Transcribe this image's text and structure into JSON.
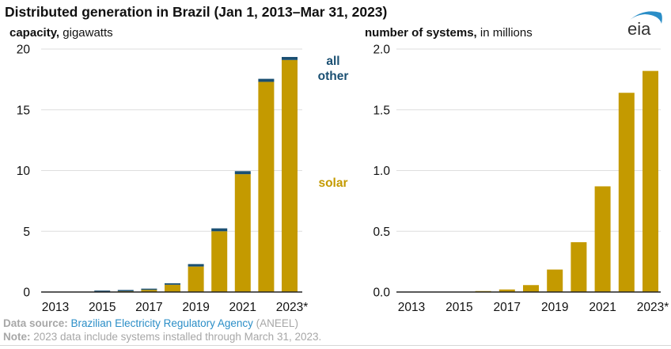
{
  "title": "Distributed generation in Brazil (Jan 1, 2013–Mar 31, 2023)",
  "logo": {
    "text": "eia",
    "icon": "eia-logo-icon"
  },
  "colors": {
    "solar": "#c49a00",
    "all_other": "#1a4f72",
    "gridline": "#dedede",
    "axis": "#222222",
    "legend_all_other": "#1a4f72",
    "legend_solar": "#c49a00",
    "source_link": "#2b8ec7",
    "footer_gray": "#a7a7a7"
  },
  "footer": {
    "source_label": "Data source:",
    "source_text": "Brazilian Electricity Regulatory Agency",
    "source_suffix": "(ANEEL)",
    "note_label": "Note:",
    "note_text": "2023 data include systems installed through March 31, 2023."
  },
  "chart_data": [
    {
      "type": "bar",
      "stacked": true,
      "title": "Distributed generation in Brazil (Jan 1, 2013–Mar 31, 2023)",
      "ylabel_bold": "capacity,",
      "ylabel_rest": "gigawatts",
      "xlabel": "",
      "categories": [
        "2013",
        "2014",
        "2015",
        "2016",
        "2017",
        "2018",
        "2019",
        "2020",
        "2021",
        "2022",
        "2023*"
      ],
      "x_tick_labels": [
        "2013",
        "2015",
        "2017",
        "2019",
        "2021",
        "2023*"
      ],
      "y_ticks": [
        0,
        5,
        10,
        15,
        20
      ],
      "y_tick_labels": [
        "0",
        "5",
        "10",
        "15",
        "20"
      ],
      "ylim": [
        0,
        20
      ],
      "grid": true,
      "series": [
        {
          "name": "solar",
          "values": [
            0.0,
            0.01,
            0.02,
            0.07,
            0.18,
            0.6,
            2.1,
            5.0,
            9.7,
            17.3,
            19.1
          ]
        },
        {
          "name": "all other",
          "values": [
            0.0,
            0.0,
            0.01,
            0.02,
            0.06,
            0.12,
            0.2,
            0.24,
            0.25,
            0.25,
            0.25
          ]
        }
      ],
      "legend": {
        "placement": "right",
        "entries": [
          "all other",
          "solar"
        ],
        "labels": {
          "all_other_line1": "all",
          "all_other_line2": "other",
          "solar": "solar"
        }
      }
    },
    {
      "type": "bar",
      "stacked": false,
      "title": "",
      "ylabel_bold": "number of systems,",
      "ylabel_rest": "in millions",
      "xlabel": "",
      "categories": [
        "2013",
        "2014",
        "2015",
        "2016",
        "2017",
        "2018",
        "2019",
        "2020",
        "2021",
        "2022",
        "2023*"
      ],
      "x_tick_labels": [
        "2013",
        "2015",
        "2017",
        "2019",
        "2021",
        "2023*"
      ],
      "y_ticks": [
        0,
        0.5,
        1.0,
        1.5,
        2.0
      ],
      "y_tick_labels": [
        "0.0",
        "0.5",
        "1.0",
        "1.5",
        "2.0"
      ],
      "ylim": [
        0,
        2.0
      ],
      "grid": true,
      "series": [
        {
          "name": "systems",
          "values": [
            0.0,
            0.001,
            0.002,
            0.008,
            0.021,
            0.057,
            0.185,
            0.41,
            0.87,
            1.64,
            1.82
          ]
        }
      ]
    }
  ]
}
